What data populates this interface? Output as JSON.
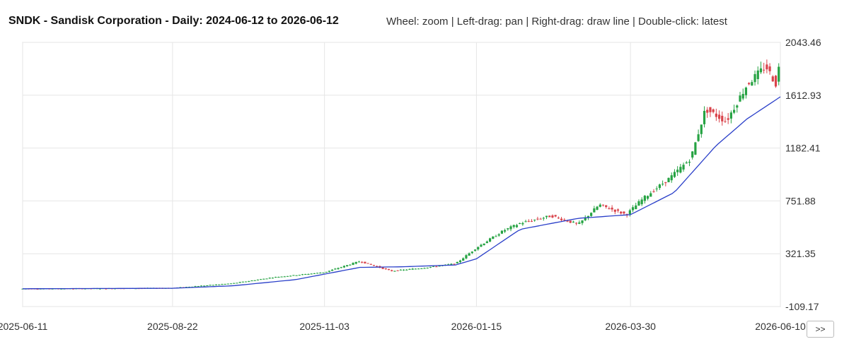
{
  "header": {
    "title": "SNDK - Sandisk Corporation - Daily: 2024-06-12 to 2026-06-12",
    "hint": "Wheel: zoom | Left-drag: pan | Right-drag: draw line | Double-click: latest"
  },
  "nav": {
    "next_label": ">>"
  },
  "colors": {
    "up": "#26a343",
    "down": "#d9434b",
    "ma": "#2a3fc9",
    "grid": "#e6e6e6"
  },
  "chart_data": {
    "type": "candlestick",
    "y_ticks": [
      "2043.46",
      "1612.93",
      "1182.41",
      "751.88",
      "321.35",
      "-109.17"
    ],
    "ylim": [
      -109.17,
      2043.46
    ],
    "x_ticks": [
      "2025-06-11",
      "2025-08-22",
      "2025-11-03",
      "2026-01-15",
      "2026-03-30",
      "2026-06-10"
    ],
    "x_range": [
      "2025-06-11",
      "2026-06-10"
    ],
    "trend_points": [
      [
        "2025-06-11",
        36
      ],
      [
        "2025-07-20",
        38
      ],
      [
        "2025-08-22",
        42
      ],
      [
        "2025-09-20",
        80
      ],
      [
        "2025-10-10",
        130
      ],
      [
        "2025-11-03",
        170
      ],
      [
        "2025-11-20",
        260
      ],
      [
        "2025-12-05",
        180
      ],
      [
        "2025-12-20",
        205
      ],
      [
        "2026-01-05",
        240
      ],
      [
        "2026-01-15",
        370
      ],
      [
        "2026-01-28",
        510
      ],
      [
        "2026-02-05",
        570
      ],
      [
        "2026-02-20",
        630
      ],
      [
        "2026-03-05",
        560
      ],
      [
        "2026-03-15",
        720
      ],
      [
        "2026-03-28",
        640
      ],
      [
        "2026-04-05",
        770
      ],
      [
        "2026-04-18",
        940
      ],
      [
        "2026-04-28",
        1100
      ],
      [
        "2026-05-05",
        1500
      ],
      [
        "2026-05-15",
        1400
      ],
      [
        "2026-05-25",
        1700
      ],
      [
        "2026-06-03",
        1850
      ],
      [
        "2026-06-08",
        1700
      ],
      [
        "2026-06-10",
        1920
      ]
    ],
    "ma_points": [
      [
        "2025-06-11",
        36
      ],
      [
        "2025-08-22",
        40
      ],
      [
        "2025-09-20",
        60
      ],
      [
        "2025-10-20",
        110
      ],
      [
        "2025-11-20",
        210
      ],
      [
        "2025-12-10",
        215
      ],
      [
        "2026-01-05",
        230
      ],
      [
        "2026-01-15",
        280
      ],
      [
        "2026-02-05",
        520
      ],
      [
        "2026-03-05",
        610
      ],
      [
        "2026-03-30",
        640
      ],
      [
        "2026-04-20",
        820
      ],
      [
        "2026-05-10",
        1200
      ],
      [
        "2026-05-25",
        1420
      ],
      [
        "2026-06-10",
        1600
      ]
    ]
  }
}
